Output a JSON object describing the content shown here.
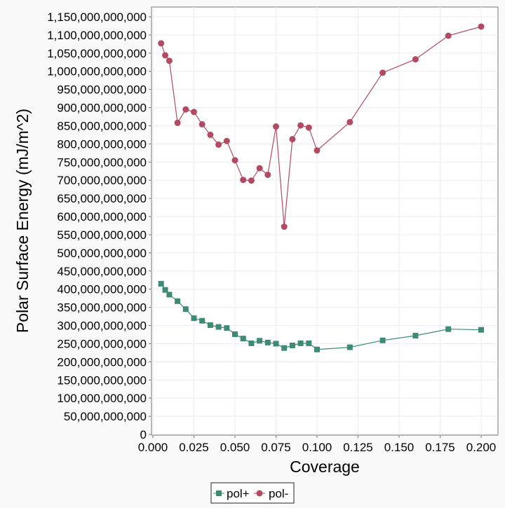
{
  "chart_data": {
    "type": "line",
    "title": "",
    "xlabel": "Coverage",
    "ylabel": "Polar Surface Energy (mJ/m^2)",
    "xlim": [
      0,
      0.2
    ],
    "ylim": [
      0,
      1150000000000
    ],
    "x_ticks": [
      "0.000",
      "0.025",
      "0.050",
      "0.075",
      "0.100",
      "0.125",
      "0.150",
      "0.175",
      "0.200"
    ],
    "y_ticks": [
      "0",
      "50,000,000,000",
      "100,000,000,000",
      "150,000,000,000",
      "200,000,000,000",
      "250,000,000,000",
      "300,000,000,000",
      "350,000,000,000",
      "400,000,000,000",
      "450,000,000,000",
      "500,000,000,000",
      "550,000,000,000",
      "600,000,000,000",
      "650,000,000,000",
      "700,000,000,000",
      "750,000,000,000",
      "800,000,000,000",
      "850,000,000,000",
      "900,000,000,000",
      "950,000,000,000",
      "1,000,000,000,000",
      "1,050,000,000,000",
      "1,100,000,000,000",
      "1,150,000,000,000"
    ],
    "grid": true,
    "legend_position": "bottom",
    "series": [
      {
        "name": "pol+",
        "color": "#3d8b73",
        "marker": "square",
        "x": [
          0.005,
          0.0075,
          0.01,
          0.015,
          0.02,
          0.025,
          0.03,
          0.035,
          0.04,
          0.045,
          0.05,
          0.055,
          0.06,
          0.065,
          0.07,
          0.075,
          0.08,
          0.085,
          0.09,
          0.095,
          0.1,
          0.12,
          0.14,
          0.16,
          0.18,
          0.2
        ],
        "y": [
          415000000000,
          398000000000,
          385000000000,
          367000000000,
          345000000000,
          320000000000,
          313000000000,
          301000000000,
          296000000000,
          293000000000,
          276000000000,
          264000000000,
          251000000000,
          258000000000,
          253000000000,
          250000000000,
          238000000000,
          245000000000,
          251000000000,
          251000000000,
          234000000000,
          240000000000,
          259000000000,
          272000000000,
          290000000000,
          288000000000
        ]
      },
      {
        "name": "pol-",
        "color": "#b24a63",
        "marker": "circle",
        "x": [
          0.005,
          0.0075,
          0.01,
          0.015,
          0.02,
          0.025,
          0.03,
          0.035,
          0.04,
          0.045,
          0.05,
          0.055,
          0.06,
          0.065,
          0.07,
          0.075,
          0.08,
          0.085,
          0.09,
          0.095,
          0.1,
          0.12,
          0.14,
          0.16,
          0.18,
          0.2
        ],
        "y": [
          1077000000000,
          1044000000000,
          1029000000000,
          858000000000,
          895000000000,
          888000000000,
          854000000000,
          825000000000,
          798000000000,
          808000000000,
          755000000000,
          701000000000,
          699000000000,
          733000000000,
          715000000000,
          848000000000,
          572000000000,
          813000000000,
          851000000000,
          845000000000,
          782000000000,
          860000000000,
          996000000000,
          1033000000000,
          1098000000000,
          1123000000000
        ]
      }
    ]
  }
}
